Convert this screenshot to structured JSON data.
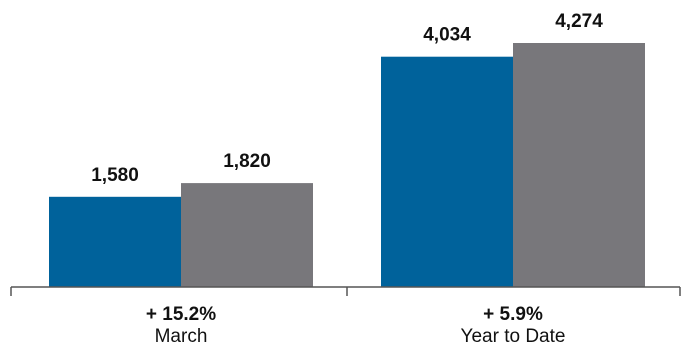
{
  "chart_data": {
    "type": "bar",
    "categories": [
      "March",
      "Year to Date"
    ],
    "change_labels": [
      "+ 15.2%",
      "+ 5.9%"
    ],
    "series": [
      {
        "color": "#00629b",
        "values": [
          1580,
          4034
        ]
      },
      {
        "color": "#78777b",
        "values": [
          1820,
          4274
        ]
      }
    ],
    "value_labels": [
      [
        "1,580",
        "4,034"
      ],
      [
        "1,820",
        "4,274"
      ]
    ],
    "ylim": [
      0,
      4274
    ],
    "grid": false,
    "legend": "none",
    "title": "",
    "xlabel": "",
    "ylabel": ""
  }
}
